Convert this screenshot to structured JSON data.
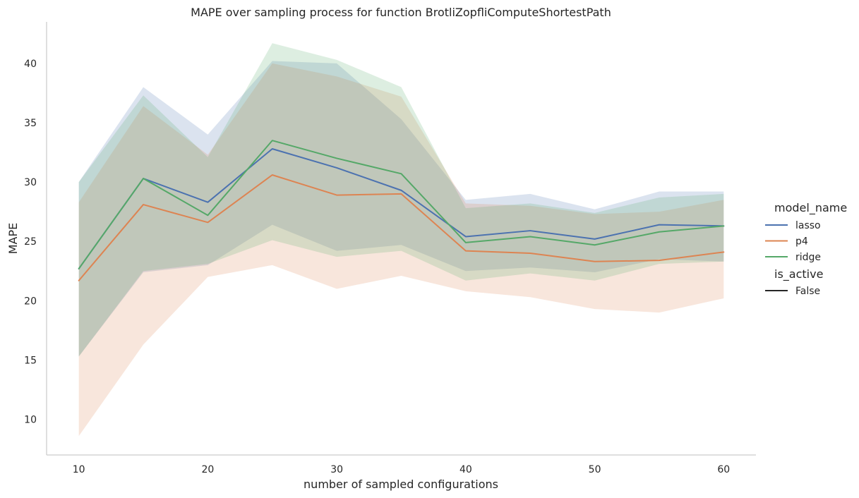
{
  "chart_data": {
    "type": "line",
    "title": "MAPE over sampling process for function BrotliZopfliComputeShortestPath",
    "xlabel": "number of sampled configurations",
    "ylabel": "MAPE",
    "xlim": [
      7.5,
      62.5
    ],
    "ylim": [
      7,
      43.5
    ],
    "x_ticks": [
      10,
      20,
      30,
      40,
      50,
      60
    ],
    "y_ticks": [
      10,
      15,
      20,
      25,
      30,
      35,
      40
    ],
    "grid": false,
    "x": [
      10,
      15,
      20,
      25,
      30,
      35,
      40,
      45,
      50,
      55,
      60
    ],
    "series": [
      {
        "name": "lasso",
        "color": "#4c72b0",
        "values": [
          22.7,
          30.3,
          28.3,
          32.8,
          31.2,
          29.3,
          25.4,
          25.9,
          25.2,
          26.4,
          26.3
        ],
        "ci_low": [
          15.3,
          22.4,
          23.0,
          26.4,
          24.2,
          24.7,
          22.5,
          22.8,
          22.4,
          23.5,
          23.3
        ],
        "ci_high": [
          30.0,
          38.0,
          34.0,
          40.2,
          40.0,
          35.3,
          28.5,
          29.0,
          27.7,
          29.2,
          29.2
        ]
      },
      {
        "name": "p4",
        "color": "#dd8452",
        "values": [
          21.7,
          28.1,
          26.6,
          30.6,
          28.9,
          29.0,
          24.2,
          24.0,
          23.3,
          23.4,
          24.1
        ],
        "ci_low": [
          8.6,
          16.3,
          22.0,
          23.0,
          21.0,
          22.1,
          20.8,
          20.3,
          19.3,
          19.0,
          20.2
        ],
        "ci_high": [
          28.3,
          36.4,
          32.3,
          40.0,
          38.9,
          37.2,
          28.2,
          28.0,
          27.3,
          27.5,
          28.5
        ]
      },
      {
        "name": "ridge",
        "color": "#55a868",
        "values": [
          22.7,
          30.3,
          27.2,
          33.5,
          32.0,
          30.7,
          24.9,
          25.4,
          24.7,
          25.8,
          26.3
        ],
        "ci_low": [
          15.3,
          22.5,
          23.1,
          25.1,
          23.7,
          24.2,
          21.7,
          22.3,
          21.7,
          23.1,
          23.3
        ],
        "ci_high": [
          30.0,
          37.3,
          32.1,
          41.7,
          40.3,
          38.0,
          27.8,
          28.2,
          27.4,
          28.7,
          29.0
        ]
      }
    ],
    "legend": {
      "placement": "right",
      "hue_title": "model_name",
      "style_title": "is_active",
      "style_entries": [
        {
          "label": "False",
          "color": "#262626"
        }
      ]
    }
  }
}
